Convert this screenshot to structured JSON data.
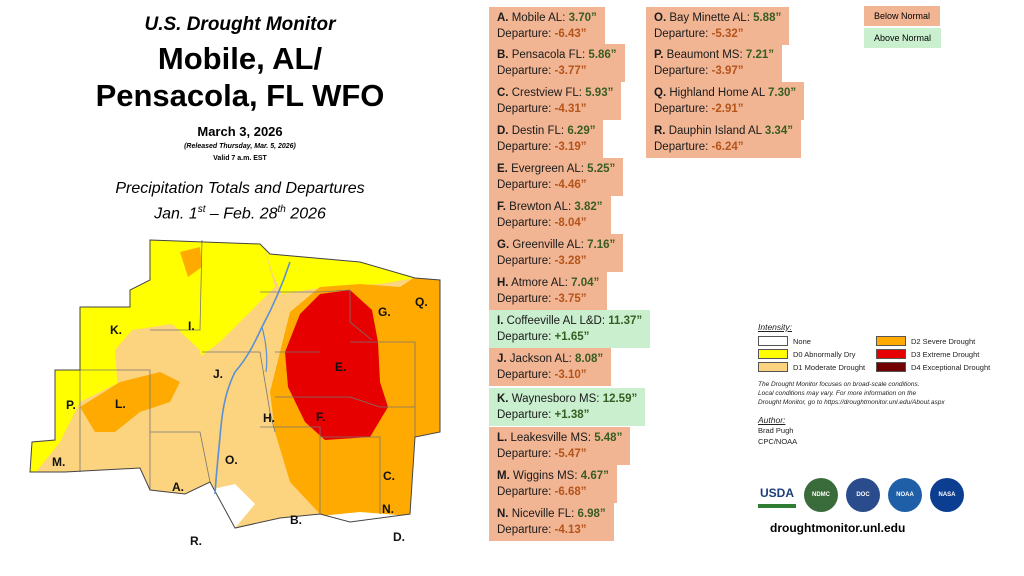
{
  "header": {
    "subtitle": "U.S. Drought Monitor",
    "title_line1": "Mobile, AL/",
    "title_line2": "Pensacola, FL WFO",
    "date": "March 3, 2026",
    "released": "(Released Thursday, Mar. 5, 2026)",
    "valid": "Valid 7 a.m. EST",
    "section_line1": "Precipitation Totals and Departures",
    "section_line2_a": "Jan. 1",
    "section_line2_sup1": "st",
    "section_line2_b": " – Feb. 28",
    "section_line2_sup2": "th",
    "section_line2_c": " 2026"
  },
  "map_labels": [
    "A.",
    "B.",
    "C.",
    "D.",
    "E.",
    "F.",
    "G.",
    "H.",
    "I.",
    "J.",
    "K.",
    "L.",
    "M.",
    "N.",
    "O.",
    "P.",
    "Q.",
    "R."
  ],
  "stations": [
    {
      "id": "A.",
      "name": "Mobile AL:",
      "total": "3.70”",
      "departure": "-6.43”",
      "class": "below"
    },
    {
      "id": "B.",
      "name": "Pensacola FL:",
      "total": "5.86”",
      "departure": "-3.77”",
      "class": "below"
    },
    {
      "id": "C.",
      "name": "Crestview FL:",
      "total": "5.93”",
      "departure": "-4.31”",
      "class": "below"
    },
    {
      "id": "D.",
      "name": "Destin FL:",
      "total": "6.29”",
      "departure": "-3.19”",
      "class": "below"
    },
    {
      "id": "E.",
      "name": "Evergreen AL:",
      "total": "5.25”",
      "departure": "-4.46”",
      "class": "below"
    },
    {
      "id": "F.",
      "name": "Brewton AL:",
      "total": "3.82”",
      "departure": "-8.04”",
      "class": "below"
    },
    {
      "id": "G.",
      "name": "Greenville AL:",
      "total": "7.16”",
      "departure": "-3.28”",
      "class": "below"
    },
    {
      "id": "H.",
      "name": "Atmore AL:",
      "total": "7.04”",
      "departure": "-3.75”",
      "class": "below"
    },
    {
      "id": "I.",
      "name": "Coffeeville AL L&D:",
      "total": "11.37”",
      "departure": "+1.65”",
      "class": "above"
    },
    {
      "id": "J.",
      "name": "Jackson AL:",
      "total": "8.08”",
      "departure": "-3.10”",
      "class": "below"
    },
    {
      "id": "K.",
      "name": "Waynesboro MS:",
      "total": "12.59”",
      "departure": "+1.38”",
      "class": "above"
    },
    {
      "id": "L.",
      "name": "Leakesville MS:",
      "total": "5.48”",
      "departure": "-5.47”",
      "class": "below"
    },
    {
      "id": "M.",
      "name": "Wiggins MS:",
      "total": "4.67”",
      "departure": "-6.68”",
      "class": "below"
    },
    {
      "id": "N.",
      "name": "Niceville FL:",
      "total": "6.98”",
      "departure": "-4.13”",
      "class": "below"
    },
    {
      "id": "O.",
      "name": "Bay Minette AL:",
      "total": "5.88”",
      "departure": "-5.32”",
      "class": "below"
    },
    {
      "id": "P.",
      "name": "Beaumont MS:",
      "total": "7.21”",
      "departure": "-3.97”",
      "class": "below"
    },
    {
      "id": "Q.",
      "name": "Highland Home AL",
      "total": "7.30”",
      "departure": "-2.91”",
      "class": "below"
    },
    {
      "id": "R.",
      "name": "Dauphin Island AL",
      "total": "3.34”",
      "departure": "-6.24”",
      "class": "below"
    }
  ],
  "departure_prefix": "Departure: ",
  "legend": {
    "below": "Below Normal",
    "above": "Above Normal"
  },
  "colors": {
    "below": "#f2b594",
    "above": "#c9efcf",
    "none": "#ffffff",
    "d0": "#ffff00",
    "d1": "#fcd37f",
    "d2": "#ffaa00",
    "d3": "#e60000",
    "d4": "#730000",
    "river": "#5b8fd6"
  },
  "intensity": {
    "title": "Intensity:",
    "items": [
      {
        "label": "None",
        "color": "#ffffff"
      },
      {
        "label": "D2 Severe Drought",
        "color": "#ffaa00"
      },
      {
        "label": "D0 Abnormally Dry",
        "color": "#ffff00"
      },
      {
        "label": "D3 Extreme Drought",
        "color": "#e60000"
      },
      {
        "label": "D1 Moderate Drought",
        "color": "#fcd37f"
      },
      {
        "label": "D4 Exceptional Drought",
        "color": "#730000"
      }
    ],
    "note_1": "The Drought Monitor focuses on broad-scale conditions.",
    "note_2": "Local conditions may vary. For more information on the",
    "note_3": "Drought Monitor, go to https://droughtmonitor.unl.edu/About.aspx",
    "author_title": "Author:",
    "author_name": "Brad Pugh",
    "author_org": "CPC/NOAA"
  },
  "logos": [
    "USDA",
    "NDMC",
    "DOC",
    "NOAA",
    "NASA"
  ],
  "site": "droughtmonitor.unl.edu"
}
